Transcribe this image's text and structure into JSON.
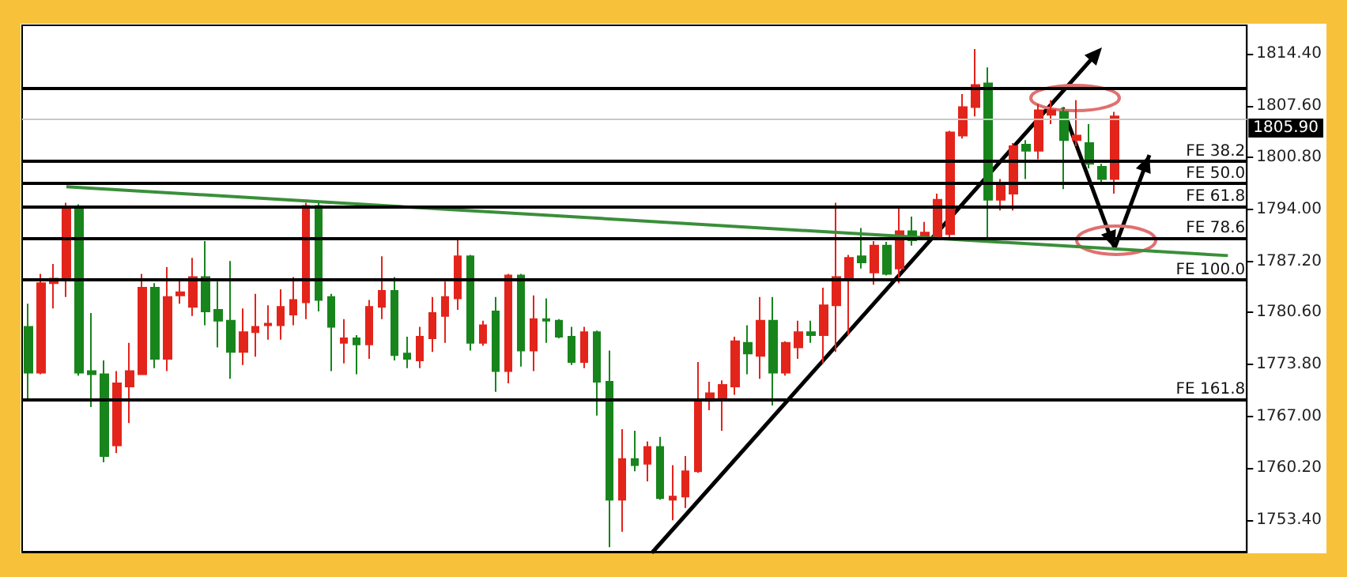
{
  "chart_data": {
    "type": "candlestick",
    "categories": [
      null,
      null,
      null,
      null,
      null,
      null,
      null,
      null,
      null,
      null,
      null,
      null,
      null,
      null,
      null,
      null,
      null,
      null,
      null,
      null,
      null,
      null,
      null,
      null,
      null,
      null,
      null,
      null,
      null,
      null,
      null,
      null,
      null,
      null,
      null,
      null,
      null,
      null,
      null,
      null,
      null,
      null,
      null,
      null,
      null,
      null,
      null,
      null,
      null,
      null,
      null,
      null,
      null,
      null,
      null,
      null,
      null,
      null,
      null,
      null,
      null,
      null,
      null,
      null,
      null,
      null,
      null,
      null,
      null,
      null,
      null,
      null,
      null,
      null,
      null,
      null,
      null,
      null,
      null,
      null,
      null,
      null,
      null,
      null,
      null,
      null,
      null,
      null,
      null,
      null,
      null,
      null,
      null,
      null,
      null,
      null,
      null
    ],
    "ohlc": [
      [
        1778.7,
        1781.7,
        1769.2,
        1772.7
      ],
      [
        1772.7,
        1785.6,
        1772.5,
        1784.4
      ],
      [
        1784.4,
        1786.9,
        1781.1,
        1785.0
      ],
      [
        1784.8,
        1794.9,
        1782.6,
        1794.1
      ],
      [
        1794.1,
        1794.7,
        1772.3,
        1772.7
      ],
      [
        1772.9,
        1780.5,
        1768.2,
        1772.5
      ],
      [
        1772.5,
        1774.3,
        1761.0,
        1761.8
      ],
      [
        1763.2,
        1772.9,
        1762.2,
        1771.3
      ],
      [
        1770.9,
        1776.6,
        1766.1,
        1772.9
      ],
      [
        1772.5,
        1785.6,
        1772.5,
        1783.8
      ],
      [
        1783.8,
        1784.4,
        1773.3,
        1774.5
      ],
      [
        1774.5,
        1786.5,
        1772.9,
        1782.6
      ],
      [
        1782.8,
        1785.0,
        1781.7,
        1783.2
      ],
      [
        1781.3,
        1787.7,
        1780.1,
        1785.2
      ],
      [
        1785.2,
        1789.9,
        1778.9,
        1780.7
      ],
      [
        1780.9,
        1784.6,
        1776.0,
        1779.5
      ],
      [
        1779.5,
        1787.3,
        1771.9,
        1775.4
      ],
      [
        1775.4,
        1781.1,
        1773.7,
        1778.0
      ],
      [
        1778.0,
        1783.0,
        1774.8,
        1778.7
      ],
      [
        1778.9,
        1781.5,
        1777.0,
        1779.1
      ],
      [
        1778.9,
        1783.6,
        1777.0,
        1781.3
      ],
      [
        1780.3,
        1785.2,
        1778.9,
        1782.2
      ],
      [
        1781.9,
        1794.9,
        1779.7,
        1794.5
      ],
      [
        1794.5,
        1794.9,
        1780.7,
        1782.2
      ],
      [
        1782.6,
        1783.0,
        1772.9,
        1778.7
      ],
      [
        1776.6,
        1779.7,
        1773.9,
        1777.2
      ],
      [
        1777.2,
        1777.6,
        1772.5,
        1776.4
      ],
      [
        1776.4,
        1782.2,
        1774.5,
        1781.3
      ],
      [
        1781.3,
        1787.9,
        1779.7,
        1783.4
      ],
      [
        1783.4,
        1785.2,
        1774.3,
        1775.0
      ],
      [
        1775.2,
        1777.4,
        1773.3,
        1774.5
      ],
      [
        1774.3,
        1778.7,
        1773.3,
        1777.4
      ],
      [
        1777.2,
        1782.6,
        1775.4,
        1780.5
      ],
      [
        1780.1,
        1784.6,
        1776.6,
        1782.6
      ],
      [
        1782.4,
        1790.2,
        1780.9,
        1787.9
      ],
      [
        1787.9,
        1788.1,
        1775.6,
        1776.6
      ],
      [
        1776.6,
        1779.5,
        1776.2,
        1778.9
      ],
      [
        1780.7,
        1782.6,
        1770.2,
        1772.9
      ],
      [
        1772.9,
        1785.6,
        1771.3,
        1785.4
      ],
      [
        1785.4,
        1785.6,
        1773.5,
        1775.6
      ],
      [
        1775.6,
        1782.8,
        1772.9,
        1779.7
      ],
      [
        1779.7,
        1782.4,
        1776.6,
        1779.5
      ],
      [
        1779.5,
        1779.7,
        1777.2,
        1777.4
      ],
      [
        1777.4,
        1778.7,
        1773.7,
        1774.1
      ],
      [
        1774.1,
        1778.7,
        1773.3,
        1778.0
      ],
      [
        1778.0,
        1778.2,
        1767.1,
        1771.5
      ],
      [
        1771.5,
        1775.6,
        1749.9,
        1756.1
      ],
      [
        1756.1,
        1765.3,
        1751.9,
        1761.4
      ],
      [
        1761.4,
        1765.1,
        1759.8,
        1760.6
      ],
      [
        1760.8,
        1763.7,
        1758.5,
        1763.0
      ],
      [
        1763.0,
        1764.3,
        1756.1,
        1756.3
      ],
      [
        1756.1,
        1760.6,
        1753.4,
        1756.5
      ],
      [
        1756.5,
        1761.8,
        1755.0,
        1759.8
      ],
      [
        1759.8,
        1774.1,
        1759.6,
        1769.2
      ],
      [
        1769.0,
        1771.5,
        1767.8,
        1770.0
      ],
      [
        1769.4,
        1771.7,
        1765.1,
        1771.1
      ],
      [
        1770.9,
        1777.4,
        1769.8,
        1776.8
      ],
      [
        1776.6,
        1778.9,
        1772.5,
        1775.2
      ],
      [
        1774.9,
        1782.6,
        1771.9,
        1779.5
      ],
      [
        1779.5,
        1782.6,
        1768.4,
        1772.7
      ],
      [
        1772.7,
        1776.8,
        1772.3,
        1776.6
      ],
      [
        1776.0,
        1779.5,
        1774.5,
        1778.0
      ],
      [
        1778.0,
        1779.5,
        1776.6,
        1777.6
      ],
      [
        1777.6,
        1783.8,
        1773.9,
        1781.5
      ],
      [
        1781.5,
        1794.9,
        1775.4,
        1785.2
      ],
      [
        1784.8,
        1788.1,
        1777.6,
        1787.7
      ],
      [
        1787.9,
        1791.6,
        1786.3,
        1787.1
      ],
      [
        1785.8,
        1789.9,
        1784.2,
        1789.3
      ],
      [
        1789.3,
        1789.8,
        1785.4,
        1785.6
      ],
      [
        1786.3,
        1794.3,
        1784.4,
        1791.2
      ],
      [
        1791.2,
        1793.1,
        1789.3,
        1790.0
      ],
      [
        1790.2,
        1792.4,
        1790.0,
        1791.0
      ],
      [
        1790.2,
        1796.1,
        1790.0,
        1795.3
      ],
      [
        1790.8,
        1804.3,
        1790.4,
        1804.1
      ],
      [
        1803.7,
        1809.1,
        1803.3,
        1807.4
      ],
      [
        1807.4,
        1815.0,
        1806.2,
        1810.3
      ],
      [
        1810.5,
        1812.6,
        1789.8,
        1795.3
      ],
      [
        1795.3,
        1798.0,
        1793.9,
        1797.2
      ],
      [
        1796.1,
        1802.7,
        1793.9,
        1802.3
      ],
      [
        1802.5,
        1803.1,
        1798.0,
        1801.7
      ],
      [
        1801.7,
        1807.8,
        1800.6,
        1807.0
      ],
      [
        1806.4,
        1808.3,
        1805.2,
        1807.0
      ],
      [
        1806.8,
        1807.4,
        1796.7,
        1803.1
      ],
      [
        1803.1,
        1808.3,
        1802.3,
        1803.7
      ],
      [
        1802.7,
        1805.2,
        1799.4,
        1800.0
      ],
      [
        1799.6,
        1800.0,
        1797.6,
        1798.0
      ],
      [
        1798.0,
        1806.8,
        1796.1,
        1806.2
      ],
      null,
      null,
      null,
      null,
      null,
      null,
      null,
      null,
      null,
      null
    ],
    "colors": [
      "#17851c",
      "#e3241b",
      "#e3241b",
      "#e3241b",
      "#17851c",
      "#17851c",
      "#17851c",
      "#e3241b",
      "#e3241b",
      "#e3241b",
      "#17851c",
      "#e3241b",
      "#e3241b",
      "#e3241b",
      "#17851c",
      "#17851c",
      "#17851c",
      "#e3241b",
      "#e3241b",
      "#e3241b",
      "#e3241b",
      "#e3241b",
      "#e3241b",
      "#17851c",
      "#17851c",
      "#e3241b",
      "#17851c",
      "#e3241b",
      "#e3241b",
      "#17851c",
      "#17851c",
      "#e3241b",
      "#e3241b",
      "#e3241b",
      "#e3241b",
      "#17851c",
      "#e3241b",
      "#17851c",
      "#e3241b",
      "#17851c",
      "#e3241b",
      "#17851c",
      "#17851c",
      "#17851c",
      "#e3241b",
      "#17851c",
      "#17851c",
      "#e3241b",
      "#17851c",
      "#e3241b",
      "#17851c",
      "#e3241b",
      "#e3241b",
      "#e3241b",
      "#e3241b",
      "#e3241b",
      "#e3241b",
      "#17851c",
      "#e3241b",
      "#17851c",
      "#e3241b",
      "#e3241b",
      "#17851c",
      "#e3241b",
      "#e3241b",
      "#e3241b",
      "#17851c",
      "#e3241b",
      "#17851c",
      "#e3241b",
      "#17851c",
      "#e3241b",
      "#e3241b",
      "#e3241b",
      "#e3241b",
      "#e3241b",
      "#17851c",
      "#e3241b",
      "#e3241b",
      "#17851c",
      "#e3241b",
      "#e3241b",
      "#17851c",
      "#e3241b",
      "#17851c",
      "#17851c",
      "#e3241b",
      null,
      null,
      null,
      null,
      null,
      null,
      null,
      null,
      null,
      null
    ],
    "series": [
      {
        "type": "line",
        "color": "#3a8f3a",
        "values": [
          null,
          null,
          null,
          1797.0,
          null,
          null,
          null,
          null,
          null,
          null,
          null,
          null,
          null,
          null,
          null,
          null,
          null,
          null,
          null,
          null,
          null,
          null,
          null,
          null,
          null,
          null,
          null,
          null,
          null,
          null,
          null,
          null,
          null,
          null,
          null,
          null,
          null,
          null,
          null,
          null,
          null,
          null,
          null,
          null,
          null,
          null,
          null,
          null,
          null,
          null,
          null,
          null,
          null,
          null,
          null,
          null,
          null,
          null,
          null,
          null,
          null,
          null,
          null,
          null,
          null,
          null,
          null,
          null,
          null,
          null,
          null,
          null,
          null,
          null,
          null,
          null,
          null,
          null,
          null,
          null,
          null,
          null,
          null,
          null,
          null,
          null,
          null,
          null,
          null,
          null,
          null,
          null,
          null,
          null,
          null,
          1788.0,
          null
        ]
      }
    ],
    "marker": "none",
    "ylim": [
      1749.3,
      1818.1
    ],
    "yticks": [
      {
        "value": 1753.4,
        "label": "1753.40"
      },
      {
        "value": 1760.2,
        "label": "1760.20"
      },
      {
        "value": 1767.0,
        "label": "1767.00"
      },
      {
        "value": 1773.8,
        "label": "1773.80"
      },
      {
        "value": 1780.6,
        "label": "1780.60"
      },
      {
        "value": 1787.2,
        "label": "1787.20"
      },
      {
        "value": 1794.0,
        "label": "1794.00"
      },
      {
        "value": 1800.8,
        "label": "1800.80"
      },
      {
        "value": 1807.6,
        "label": "1807.60"
      },
      {
        "value": 1814.4,
        "label": "1814.40"
      }
    ],
    "tick_labels": "y",
    "ref_lines": [
      {
        "axis": "y",
        "value": 1805.9,
        "label": "1805.90",
        "color": "#c8c8c8"
      },
      {
        "axis": "y",
        "value": 1809.9,
        "color": "#000000"
      },
      {
        "axis": "y",
        "value": 1800.3,
        "label": "FE 38.2",
        "color": "#000000"
      },
      {
        "axis": "y",
        "value": 1797.4,
        "label": "FE 50.0",
        "color": "#000000"
      },
      {
        "axis": "y",
        "value": 1794.4,
        "label": "FE 61.8",
        "color": "#000000"
      },
      {
        "axis": "y",
        "value": 1790.3,
        "label": "FE 78.6",
        "color": "#000000"
      },
      {
        "axis": "y",
        "value": 1784.8,
        "label": "FE 100.0",
        "color": "#000000"
      },
      {
        "axis": "y",
        "value": 1769.2,
        "label": "FE 161.8",
        "color": "#000000"
      }
    ]
  }
}
